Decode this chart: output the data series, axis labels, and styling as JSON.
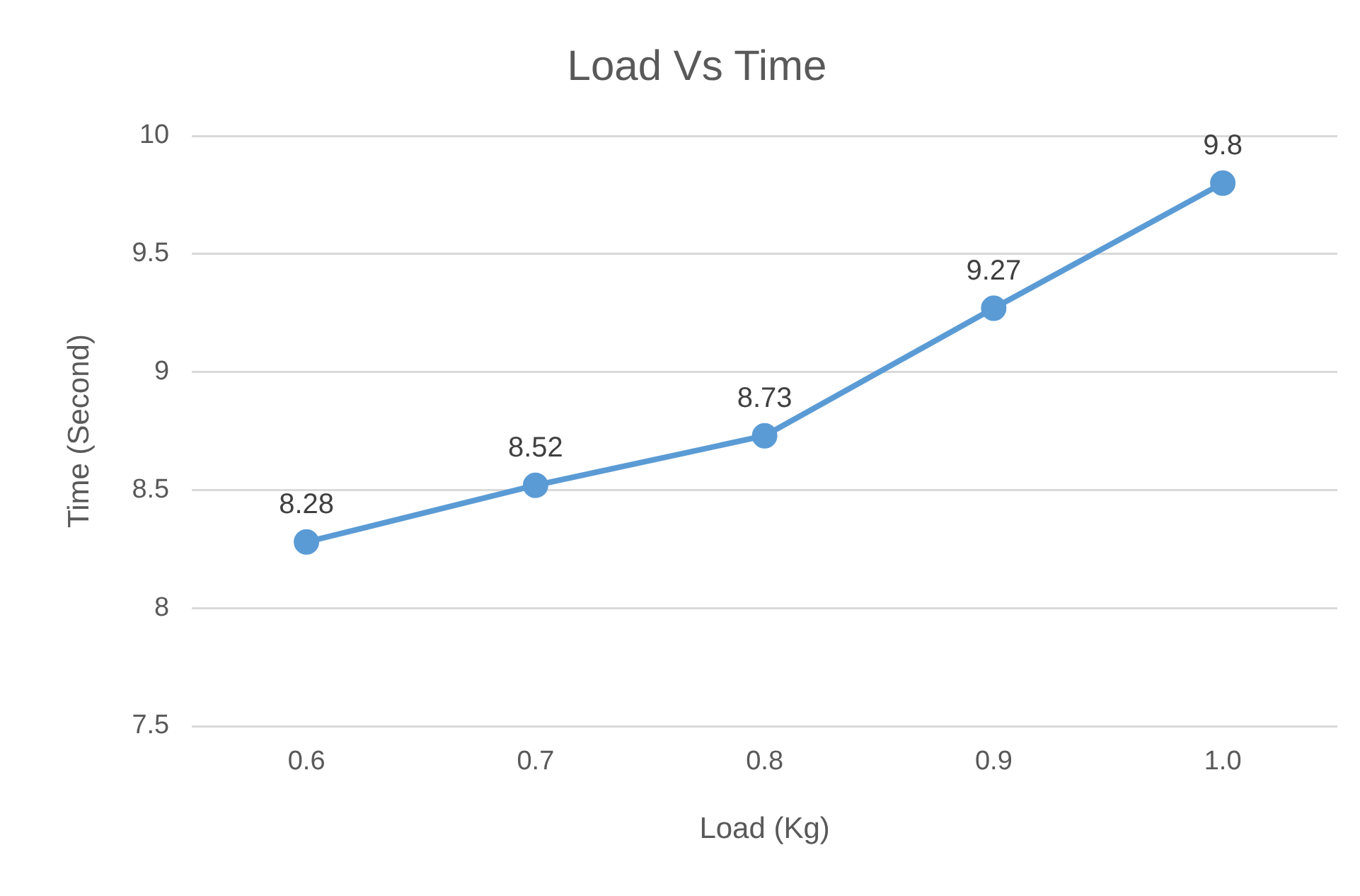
{
  "chart_data": {
    "type": "line",
    "title": "Load Vs Time",
    "xlabel": "Load (Kg)",
    "ylabel": "Time (Second)",
    "categories": [
      "0.6",
      "0.7",
      "0.8",
      "0.9",
      "1.0"
    ],
    "series": [
      {
        "color": "#5b9bd5",
        "values": [
          8.28,
          8.52,
          8.73,
          9.27,
          9.8
        ]
      }
    ],
    "ylim": [
      7.5,
      10
    ],
    "yticks": [
      7.5,
      8,
      8.5,
      9,
      9.5,
      10
    ],
    "grid": "y",
    "legend": false,
    "marker": "circle",
    "data_labels": true
  }
}
